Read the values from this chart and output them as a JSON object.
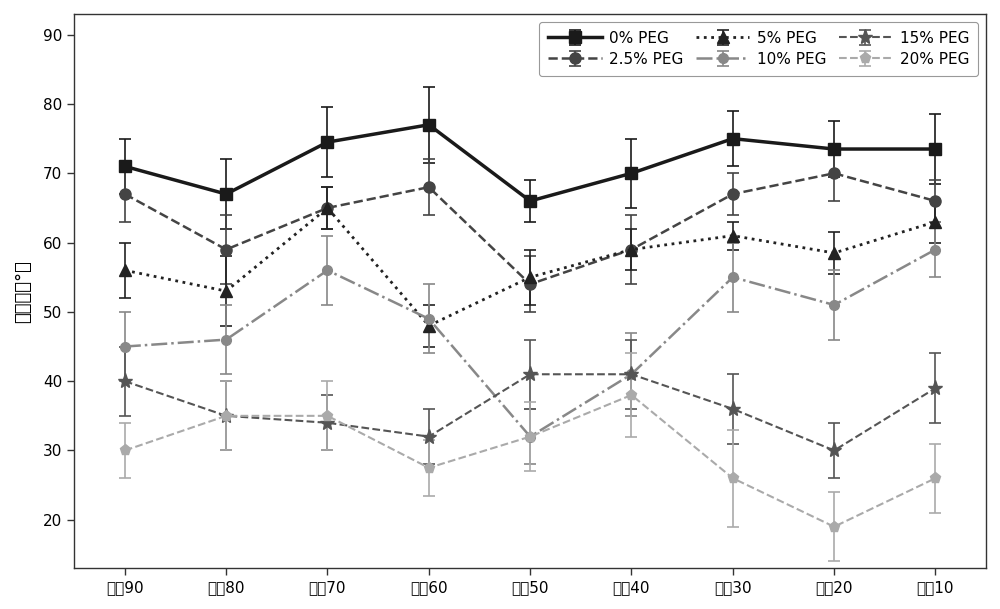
{
  "x_labels": [
    "疏基90",
    "疏基80",
    "疏基70",
    "疏基60",
    "疏基50",
    "疏基40",
    "疏基30",
    "疏基20",
    "疏基10"
  ],
  "x_positions": [
    0,
    1,
    2,
    3,
    4,
    5,
    6,
    7,
    8
  ],
  "ylabel": "接触角（°）",
  "ylim": [
    13,
    93
  ],
  "yticks": [
    20,
    30,
    40,
    50,
    60,
    70,
    80,
    90
  ],
  "series": [
    {
      "label": "0% PEG",
      "color": "#1a1a1a",
      "linestyle": "-",
      "linewidth": 2.5,
      "marker": "s",
      "markersize": 8,
      "values": [
        71,
        67,
        74.5,
        77,
        66,
        70,
        75,
        73.5,
        73.5
      ],
      "yerr": [
        4,
        5,
        5,
        5.5,
        3,
        5,
        4,
        4,
        5
      ]
    },
    {
      "label": "2.5% PEG",
      "color": "#444444",
      "linestyle": "--",
      "linewidth": 1.8,
      "marker": "o",
      "markersize": 8,
      "values": [
        67,
        59,
        65,
        68,
        54,
        59,
        67,
        70,
        66
      ],
      "yerr": [
        4,
        5,
        3,
        4,
        4,
        5,
        3,
        4,
        3
      ]
    },
    {
      "label": "5% PEG",
      "color": "#222222",
      "linestyle": ":",
      "linewidth": 2.0,
      "marker": "^",
      "markersize": 9,
      "values": [
        56,
        53,
        65,
        48,
        55,
        59,
        61,
        58.5,
        63
      ],
      "yerr": [
        4,
        5,
        3,
        3,
        4,
        3,
        2,
        3,
        3
      ]
    },
    {
      "label": "10% PEG",
      "color": "#888888",
      "linestyle": "-.",
      "linewidth": 1.8,
      "marker": "o",
      "markersize": 7,
      "values": [
        45,
        46,
        56,
        49,
        32,
        41,
        55,
        51,
        59
      ],
      "yerr": [
        5,
        5,
        5,
        5,
        4,
        6,
        5,
        5,
        4
      ]
    },
    {
      "label": "15% PEG",
      "color": "#555555",
      "linestyle": "--",
      "linewidth": 1.5,
      "marker": "*",
      "markersize": 11,
      "values": [
        40,
        35,
        34,
        32,
        41,
        41,
        36,
        30,
        39
      ],
      "yerr": [
        5,
        5,
        4,
        4,
        5,
        5,
        5,
        4,
        5
      ]
    },
    {
      "label": "20% PEG",
      "color": "#aaaaaa",
      "linestyle": "--",
      "linewidth": 1.5,
      "marker": "p",
      "markersize": 8,
      "values": [
        30,
        35,
        35,
        27.5,
        32,
        38,
        26,
        19,
        26
      ],
      "yerr": [
        4,
        5,
        5,
        4,
        5,
        6,
        7,
        5,
        5
      ]
    }
  ],
  "background_color": "#ffffff",
  "tick_fontsize": 11,
  "legend_fontsize": 11,
  "legend_ncol": 3
}
